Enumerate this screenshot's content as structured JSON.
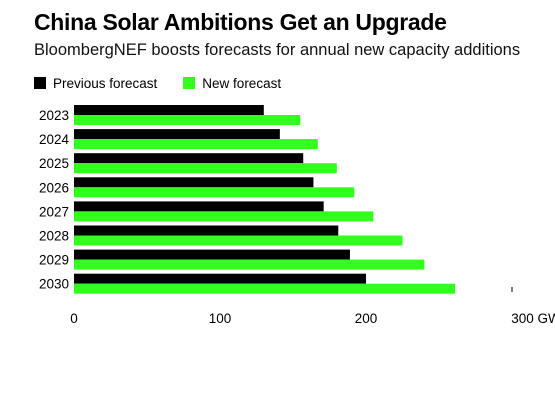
{
  "chart_data": {
    "type": "bar",
    "orientation": "horizontal",
    "title": "China Solar Ambitions Get an Upgrade",
    "subtitle": "BloombergNEF boosts forecasts for annual new capacity additions",
    "categories": [
      "2023",
      "2024",
      "2025",
      "2026",
      "2027",
      "2028",
      "2029",
      "2030"
    ],
    "series": [
      {
        "name": "Previous forecast",
        "color": "#000000",
        "values": [
          130,
          141,
          157,
          164,
          171,
          181,
          189,
          200
        ]
      },
      {
        "name": "New forecast",
        "color": "#33ff1e",
        "values": [
          155,
          167,
          180,
          192,
          205,
          225,
          240,
          261
        ]
      }
    ],
    "xlim": [
      0,
      300
    ],
    "xticks": [
      0,
      100,
      200,
      300
    ],
    "xtick_labels": [
      "0",
      "100",
      "200",
      "300 GW"
    ],
    "grid": false,
    "legend_position": "top-left"
  }
}
